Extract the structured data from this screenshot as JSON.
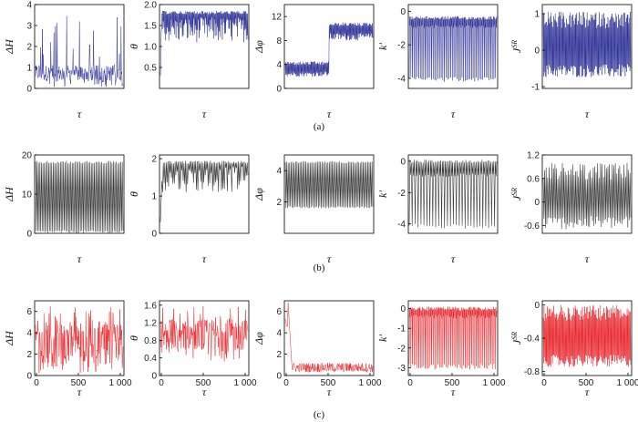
{
  "colors": {
    "row_a": "#2c2f96",
    "row_b": "#3a3a3a",
    "row_c": "#e8252b"
  },
  "row_labels": [
    "(a)",
    "(b)",
    "(c)"
  ],
  "chart_data": [
    {
      "type": "line",
      "row": 0,
      "col": 0,
      "ylabel": "ΔH",
      "xlabel": "τ",
      "ylim": [
        0,
        4
      ],
      "yticks": [
        "0",
        "1",
        "2",
        "3",
        "4"
      ],
      "xticks": [],
      "pattern": "noise",
      "params": {
        "lo": 0.05,
        "hi": 3.5,
        "mean": 0.8
      }
    },
    {
      "type": "line",
      "row": 0,
      "col": 1,
      "ylabel": "θ",
      "xlabel": "τ",
      "ylim": [
        0,
        2
      ],
      "yticks": [
        "0.5",
        "1.0",
        "1.5",
        "2.0"
      ],
      "xticks": [],
      "pattern": "topband",
      "params": {
        "top": 1.85,
        "low": 1.1,
        "start": 0.3
      }
    },
    {
      "type": "line",
      "row": 0,
      "col": 2,
      "ylabel": "Δφ",
      "xlabel": "τ",
      "ylim": [
        0,
        14
      ],
      "yticks": [
        "0",
        "4",
        "8",
        "12"
      ],
      "xticks": [],
      "pattern": "step",
      "params": {
        "a_lo": 2.0,
        "a_hi": 4.5,
        "b_lo": 8.0,
        "b_hi": 11.0,
        "split": 0.5
      }
    },
    {
      "type": "line",
      "row": 0,
      "col": 3,
      "ylabel": "k'",
      "xlabel": "τ",
      "ylim": [
        -4.6,
        0.4
      ],
      "yticks": [
        "0",
        "-2",
        "-4"
      ],
      "xticks": [],
      "pattern": "spikesdown",
      "params": {
        "top": -0.3,
        "base": -1.0,
        "low": -4.2
      }
    },
    {
      "type": "line",
      "row": 0,
      "col": 4,
      "ylabel": "J^SR",
      "xlabel": "τ",
      "ylim": [
        -1.05,
        1.25
      ],
      "yticks": [
        "1",
        "0",
        "-1"
      ],
      "xticks": [],
      "pattern": "dense",
      "params": {
        "lo": -0.75,
        "hi": 1.05
      }
    },
    {
      "type": "line",
      "row": 1,
      "col": 0,
      "ylabel": "ΔH",
      "xlabel": "τ",
      "ylim": [
        0,
        20
      ],
      "yticks": [
        "0",
        "10",
        "20"
      ],
      "xticks": [],
      "pattern": "osc",
      "params": {
        "lo": 0,
        "hi": 18.5
      }
    },
    {
      "type": "line",
      "row": 1,
      "col": 1,
      "ylabel": "θ",
      "xlabel": "τ",
      "ylim": [
        0,
        2.1
      ],
      "yticks": [
        "0",
        "1",
        "2"
      ],
      "xticks": [],
      "pattern": "topband",
      "params": {
        "top": 1.95,
        "low": 1.1,
        "start": 0.3
      }
    },
    {
      "type": "line",
      "row": 1,
      "col": 2,
      "ylabel": "Δφ",
      "xlabel": "τ",
      "ylim": [
        0,
        5
      ],
      "yticks": [
        "2",
        "4"
      ],
      "xticks": [],
      "pattern": "osc",
      "params": {
        "lo": 1.6,
        "hi": 4.6
      }
    },
    {
      "type": "line",
      "row": 1,
      "col": 3,
      "ylabel": "k'",
      "xlabel": "τ",
      "ylim": [
        -4.6,
        0.4
      ],
      "yticks": [
        "0",
        "-2",
        "-4"
      ],
      "xticks": [],
      "pattern": "spikesdown",
      "params": {
        "top": 0.1,
        "base": -1.0,
        "low": -4.3
      }
    },
    {
      "type": "line",
      "row": 1,
      "col": 4,
      "ylabel": "J^SR",
      "xlabel": "τ",
      "ylim": [
        -0.8,
        1.2
      ],
      "yticks": [
        "1.2",
        "0.6",
        "0",
        "-0.6"
      ],
      "xticks": [],
      "pattern": "dense",
      "params": {
        "lo": -0.7,
        "hi": 1.0
      }
    },
    {
      "type": "line",
      "row": 2,
      "col": 0,
      "ylabel": "ΔH",
      "xlabel": "τ",
      "ylim": [
        0,
        7
      ],
      "yticks": [
        "0",
        "2",
        "4",
        "6"
      ],
      "xticks": [
        "0",
        "500",
        "1 000"
      ],
      "pattern": "noise",
      "params": {
        "lo": 0.2,
        "hi": 6.5,
        "mean": 3.5
      }
    },
    {
      "type": "line",
      "row": 2,
      "col": 1,
      "ylabel": "θ",
      "xlabel": "τ",
      "ylim": [
        0,
        1.7
      ],
      "yticks": [
        "0",
        "0.4",
        "0.8",
        "1.2",
        "1.6"
      ],
      "xticks": [
        "0",
        "500",
        "1 000"
      ],
      "pattern": "noise",
      "params": {
        "lo": 0.3,
        "hi": 1.6,
        "mean": 1.0
      }
    },
    {
      "type": "line",
      "row": 2,
      "col": 2,
      "ylabel": "Δφ",
      "xlabel": "τ",
      "ylim": [
        0,
        7
      ],
      "yticks": [
        "0",
        "2",
        "4",
        "6"
      ],
      "xticks": [
        "0",
        "500",
        "1 000"
      ],
      "pattern": "decay",
      "params": {
        "lo": 0.3,
        "hi": 1.2,
        "spike": 6.8
      }
    },
    {
      "type": "line",
      "row": 2,
      "col": 3,
      "ylabel": "k'",
      "xlabel": "τ",
      "ylim": [
        -3.4,
        0.4
      ],
      "yticks": [
        "0",
        "-1",
        "-2",
        "-3"
      ],
      "xticks": [
        "0",
        "500",
        "1 000"
      ],
      "pattern": "spikesdown",
      "params": {
        "top": 0.1,
        "base": -0.5,
        "low": -3.1
      }
    },
    {
      "type": "line",
      "row": 2,
      "col": 4,
      "ylabel": "J^SR",
      "xlabel": "τ",
      "ylim": [
        -0.85,
        0.05
      ],
      "yticks": [
        "0",
        "-0.4",
        "-0.8"
      ],
      "xticks": [
        "0",
        "500",
        "1 000"
      ],
      "pattern": "dense",
      "params": {
        "lo": -0.75,
        "hi": 0.0
      }
    }
  ]
}
